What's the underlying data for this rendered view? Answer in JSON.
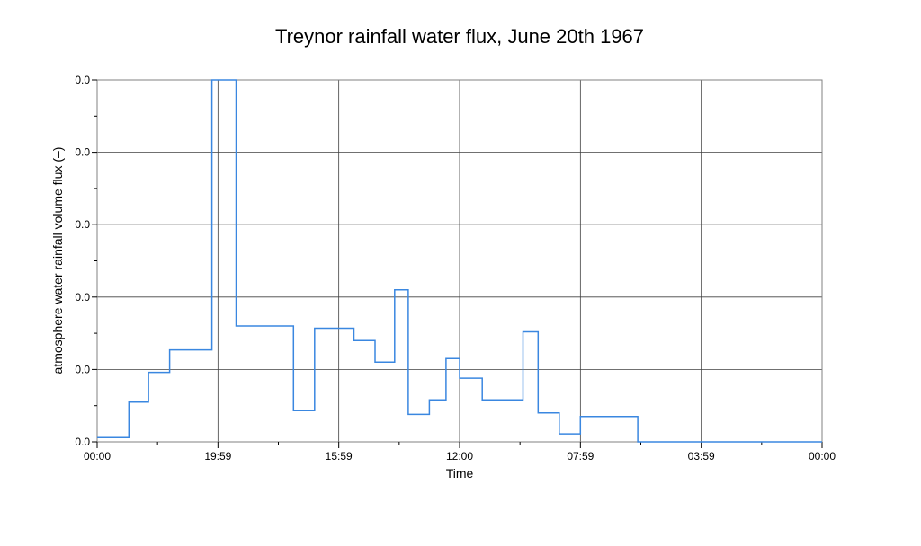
{
  "chart_data": {
    "type": "line",
    "title": "Treynor rainfall water flux, June 20th 1967",
    "xlabel": "Time",
    "ylabel": "atmosphere water  rainfall volume flux (–)",
    "x_tick_labels": [
      "00:00",
      "19:59",
      "15:59",
      "12:00",
      "07:59",
      "03:59",
      "00:00"
    ],
    "y_tick_labels": [
      "0.0",
      "0.0",
      "0.0",
      "0.0",
      "0.0",
      "0.0"
    ],
    "xlim": [
      0,
      24
    ],
    "ylim": [
      0,
      5
    ],
    "grid": true,
    "legend": "none",
    "series_color": "#3a87e0",
    "series": [
      {
        "step": "post",
        "x": [
          0,
          1.05,
          1.7,
          2.4,
          3.8,
          4.0,
          4.6,
          6.5,
          7.2,
          8.5,
          9.2,
          9.85,
          10.3,
          11.0,
          11.55,
          12.0,
          12.75,
          14.1,
          14.6,
          15.3,
          15.9,
          16.0,
          16.6,
          17.9,
          18.9,
          24.0
        ],
        "y": [
          0.06,
          0.55,
          0.96,
          1.27,
          5.0,
          5.0,
          1.6,
          0.43,
          1.57,
          1.4,
          1.1,
          2.1,
          0.38,
          0.58,
          1.15,
          0.88,
          0.58,
          1.52,
          0.4,
          0.11,
          0.11,
          0.35,
          0.35,
          0.0,
          0.0,
          0.0
        ]
      }
    ]
  }
}
